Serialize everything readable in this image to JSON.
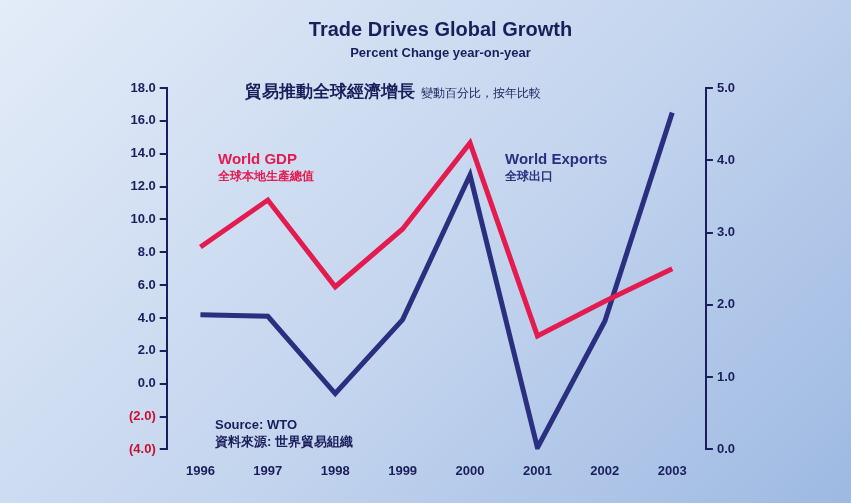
{
  "chart_data": {
    "type": "line",
    "title": "Trade Drives Global Growth",
    "subtitle": "Percent Change year-on-year",
    "title_zh": "貿易推動全球經濟增長",
    "subtitle_zh": "變動百分比，按年比較",
    "source": [
      "Source: WTO",
      "資料來源: 世界貿易組織"
    ],
    "categories": [
      "1996",
      "1997",
      "1998",
      "1999",
      "2000",
      "2001",
      "2002",
      "2003"
    ],
    "series": [
      {
        "name": "World GDP",
        "name_zh": "全球本地生產總值",
        "color": "#e31b4f",
        "axis": "y2",
        "values": [
          2.8,
          3.45,
          2.25,
          3.05,
          4.24,
          1.57,
          2.05,
          2.5
        ]
      },
      {
        "name": "World Exports",
        "name_zh": "全球出口",
        "color": "#2a2f7f",
        "values": [
          4.2,
          4.1,
          -0.6,
          3.9,
          12.7,
          -3.9,
          3.8,
          16.5
        ]
      }
    ],
    "ylim": [
      -4,
      18
    ],
    "yticks": [
      {
        "value": -4,
        "label": "(4.0)"
      },
      {
        "value": -2,
        "label": "(2.0)"
      },
      {
        "value": 0,
        "label": "0.0"
      },
      {
        "value": 2,
        "label": "2.0"
      },
      {
        "value": 4,
        "label": "4.0"
      },
      {
        "value": 6,
        "label": "6.0"
      },
      {
        "value": 8,
        "label": "8.0"
      },
      {
        "value": 10,
        "label": "10.0"
      },
      {
        "value": 12,
        "label": "12.0"
      },
      {
        "value": 14,
        "label": "14.0"
      },
      {
        "value": 16,
        "label": "16.0"
      },
      {
        "value": 18,
        "label": "18.0"
      }
    ],
    "y2lim": [
      0,
      5
    ],
    "y2ticks": [
      {
        "value": 0,
        "label": "0.0"
      },
      {
        "value": 1,
        "label": "1.0"
      },
      {
        "value": 2,
        "label": "2.0"
      },
      {
        "value": 3,
        "label": "3.0"
      },
      {
        "value": 4,
        "label": "4.0"
      },
      {
        "value": 5,
        "label": "5.0"
      }
    ],
    "grid": false
  }
}
